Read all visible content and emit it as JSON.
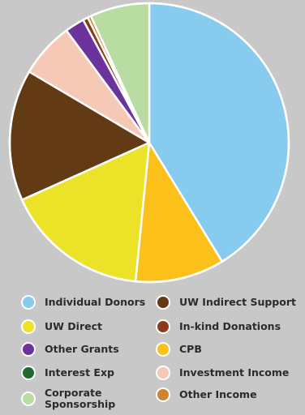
{
  "chart_data": {
    "type": "pie",
    "slices": [
      {
        "label": "Individual Donors",
        "value": 42.0,
        "color": "#87ccee"
      },
      {
        "label": "CPB",
        "value": 10.5,
        "color": "#fbc11a"
      },
      {
        "label": "UW Direct",
        "value": 17.0,
        "color": "#ece328"
      },
      {
        "label": "UW Indirect Support",
        "value": 15.5,
        "color": "#623a13"
      },
      {
        "label": "Investment Income",
        "value": 6.5,
        "color": "#f5c9b5"
      },
      {
        "label": "Other Grants",
        "value": 2.3,
        "color": "#6d339c"
      },
      {
        "label": "In-kind Donations",
        "value": 0.6,
        "color": "#8a3b1c"
      },
      {
        "label": "Other Income",
        "value": 0.4,
        "color": "#cd8330"
      },
      {
        "label": "Corporate Sponsorship",
        "value": 7.0,
        "color": "#b9dca2"
      },
      {
        "label": "Interest Exp",
        "value": 0.0,
        "color": "#1f6b30"
      }
    ],
    "legend": {
      "placement": "bottom",
      "items": [
        {
          "label": "Individual Donors",
          "color": "#87ccee"
        },
        {
          "label": "UW Direct",
          "color": "#ece328"
        },
        {
          "label": "Other Grants",
          "color": "#6d339c"
        },
        {
          "label": "Interest Exp",
          "color": "#1f6b30"
        },
        {
          "label": "Corporate\nSponsorship",
          "color": "#b9dca2"
        },
        {
          "label": "UW Indirect Support",
          "color": "#623a13"
        },
        {
          "label": "In-kind Donations",
          "color": "#8a3b1c"
        },
        {
          "label": "CPB",
          "color": "#fbc11a"
        },
        {
          "label": "Investment Income",
          "color": "#f5c9b5"
        },
        {
          "label": "Other Income",
          "color": "#cd8330"
        }
      ]
    }
  }
}
